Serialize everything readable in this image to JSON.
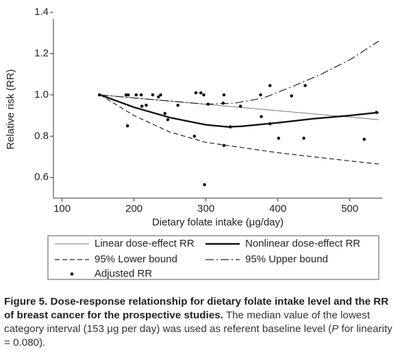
{
  "chart_data": {
    "type": "line",
    "x_label": "Dietary folate intake (μg/day)",
    "y_label": "Relative risk (RR)",
    "xlim": [
      88,
      545
    ],
    "ylim": [
      0.5,
      1.4
    ],
    "xticks": [
      100,
      200,
      300,
      400,
      500
    ],
    "yticks": [
      0.6,
      0.8,
      {
        "value": 1,
        "label": "1.0"
      },
      1.2,
      1.4
    ],
    "series": [
      {
        "name": "Linear dose-effect RR",
        "type": "line",
        "style": "solid",
        "width": 1,
        "color": "#777777",
        "x": [
          153,
          540
        ],
        "values": [
          1.0,
          0.88
        ]
      },
      {
        "name": "Nonlinear dose-effect RR",
        "type": "line",
        "style": "solid",
        "width": 2.4,
        "color": "#111111",
        "x": [
          153,
          200,
          250,
          300,
          330,
          350,
          400,
          450,
          500,
          540
        ],
        "values": [
          1.0,
          0.94,
          0.89,
          0.855,
          0.845,
          0.848,
          0.865,
          0.885,
          0.9,
          0.915
        ]
      },
      {
        "name": "95% Lower bound",
        "type": "line",
        "style": "dashed",
        "width": 1.2,
        "color": "#222222",
        "x": [
          153,
          200,
          250,
          300,
          350,
          400,
          450,
          500,
          540
        ],
        "values": [
          1.0,
          0.9,
          0.82,
          0.77,
          0.745,
          0.72,
          0.7,
          0.68,
          0.665
        ]
      },
      {
        "name": "95% Upper bound",
        "type": "line",
        "style": "dashdot",
        "width": 1.2,
        "color": "#222222",
        "x": [
          153,
          200,
          250,
          300,
          340,
          380,
          420,
          460,
          500,
          540
        ],
        "values": [
          1.0,
          0.985,
          0.97,
          0.955,
          0.96,
          0.985,
          1.04,
          1.1,
          1.17,
          1.26
        ]
      },
      {
        "name": "Adjusted RR",
        "type": "scatter",
        "color": "#111111",
        "x": [
          152,
          189,
          192,
          191,
          203,
          210,
          211,
          217,
          226,
          234,
          237,
          243,
          247,
          261,
          284,
          286,
          293,
          297,
          298,
          303,
          324,
          325,
          325,
          334,
          348,
          376,
          377,
          389,
          389,
          401,
          419,
          436,
          438,
          520,
          537
        ],
        "values": [
          1.0,
          1.0,
          1.0,
          0.85,
          1.0,
          1.0,
          0.945,
          0.95,
          1.0,
          0.99,
          1.0,
          0.91,
          0.88,
          0.95,
          0.8,
          1.01,
          1.01,
          1.0,
          0.565,
          0.955,
          0.96,
          1.0,
          0.755,
          0.845,
          0.945,
          1.0,
          0.895,
          1.045,
          0.86,
          0.79,
          0.995,
          0.79,
          1.045,
          0.785,
          0.915
        ]
      }
    ]
  },
  "caption": {
    "bold": "Figure 5. Dose-response relationship for dietary folate intake level and the RR of breast cancer for the prospective studies.",
    "text": " The median value of the lowest category interval (153 μg per day) was used as referent baseline level (",
    "italic": "P",
    "text_end": " for linearity = 0.080)."
  }
}
